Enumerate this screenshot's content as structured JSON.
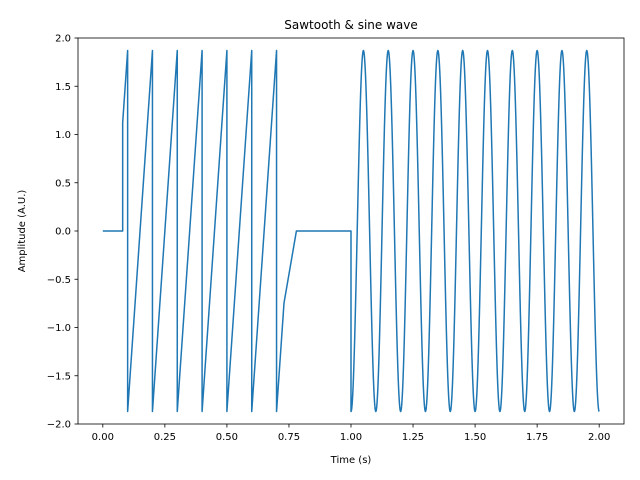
{
  "chart_data": {
    "type": "line",
    "title": "Sawtooth & sine wave",
    "xlabel": "Time (s)",
    "ylabel": "Amplitude (A.U.)",
    "xlim": [
      -0.1,
      2.1
    ],
    "ylim": [
      -2.0,
      2.0
    ],
    "xticks": [
      0.0,
      0.25,
      0.5,
      0.75,
      1.0,
      1.25,
      1.5,
      1.75,
      2.0
    ],
    "xtick_labels": [
      "0.00",
      "0.25",
      "0.50",
      "0.75",
      "1.00",
      "1.25",
      "1.50",
      "1.75",
      "2.00"
    ],
    "yticks": [
      -2.0,
      -1.5,
      -1.0,
      -0.5,
      0.0,
      0.5,
      1.0,
      1.5,
      2.0
    ],
    "ytick_labels": [
      "−2.0",
      "−1.5",
      "−1.0",
      "−0.5",
      "0.0",
      "0.5",
      "1.0",
      "1.5",
      "2.0"
    ],
    "grid": false,
    "legend": "none",
    "line_color": "#1f77b4",
    "series": [
      {
        "segments": [
          {
            "shape": "flat",
            "x": [
              0.0,
              0.08
            ],
            "value": 0.0
          },
          {
            "shape": "sawtooth",
            "x": [
              0.08,
              0.73
            ],
            "period": 0.1,
            "amplitude": 1.87,
            "first_rise_start": 0.0
          },
          {
            "shape": "flat",
            "x": [
              0.78,
              1.0
            ],
            "value": 0.0
          },
          {
            "shape": "sine",
            "x": [
              1.0,
              2.0
            ],
            "frequency": 10,
            "amplitude": 1.87,
            "phase": -1.5708
          }
        ]
      }
    ]
  }
}
